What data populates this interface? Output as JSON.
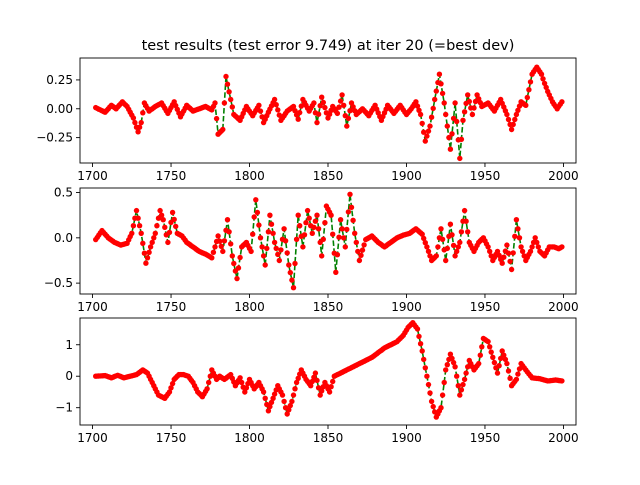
{
  "title": "test results (test error 9.749) at iter 20 (=best dev)",
  "colors": {
    "fit_line": "#008000",
    "points": "#ff0000",
    "axes": "#000000",
    "background": "#ffffff"
  },
  "chart_data": [
    {
      "type": "scatter",
      "title": "test results (test error 9.749) at iter 20 (=best dev)",
      "xlim": [
        1692,
        2008
      ],
      "ylim": [
        -0.47,
        0.44
      ],
      "xticks": [
        1700,
        1750,
        1800,
        1850,
        1900,
        1950,
        2000
      ],
      "yticks": [
        -0.25,
        0.0,
        0.25
      ],
      "yticklabels": [
        "−0.25",
        "0.00",
        "0.25"
      ],
      "x_step": 1,
      "x_start": 1702,
      "ctrl_x": [
        1702,
        1708,
        1712,
        1715,
        1719,
        1722,
        1726,
        1729,
        1731,
        1733,
        1736,
        1740,
        1744,
        1748,
        1752,
        1756,
        1760,
        1764,
        1768,
        1772,
        1776,
        1778,
        1780,
        1783,
        1785,
        1788,
        1790,
        1794,
        1798,
        1802,
        1806,
        1809,
        1812,
        1816,
        1820,
        1824,
        1828,
        1831,
        1834,
        1838,
        1841,
        1843,
        1846,
        1850,
        1853,
        1856,
        1859,
        1862,
        1865,
        1868,
        1872,
        1876,
        1880,
        1884,
        1888,
        1892,
        1896,
        1900,
        1903,
        1906,
        1909,
        1912,
        1915,
        1918,
        1921,
        1924,
        1928,
        1931,
        1934,
        1936,
        1939,
        1942,
        1945,
        1948,
        1952,
        1956,
        1960,
        1964,
        1967,
        1970,
        1973,
        1976,
        1980,
        1983,
        1986,
        1988,
        1990,
        1993,
        1996,
        1999
      ],
      "ctrl_y": [
        0.01,
        -0.03,
        0.03,
        0.0,
        0.06,
        0.02,
        -0.08,
        -0.2,
        -0.12,
        0.05,
        -0.02,
        0.02,
        0.05,
        -0.04,
        0.06,
        -0.07,
        0.03,
        -0.02,
        0.0,
        0.02,
        -0.01,
        0.05,
        -0.22,
        -0.18,
        0.28,
        0.08,
        -0.05,
        -0.1,
        0.02,
        -0.06,
        0.03,
        -0.12,
        -0.03,
        0.08,
        -0.1,
        -0.02,
        0.02,
        -0.09,
        0.08,
        -0.02,
        0.05,
        -0.12,
        0.1,
        -0.08,
        0.02,
        -0.04,
        0.12,
        -0.15,
        0.05,
        -0.05,
        0.0,
        -0.06,
        0.03,
        -0.1,
        0.03,
        -0.04,
        0.03,
        -0.05,
        0.0,
        0.06,
        -0.05,
        -0.28,
        -0.15,
        0.08,
        0.3,
        0.05,
        -0.35,
        0.05,
        -0.43,
        -0.1,
        0.12,
        -0.05,
        0.12,
        0.02,
        0.05,
        -0.02,
        0.08,
        -0.05,
        -0.18,
        -0.05,
        0.06,
        0.03,
        0.3,
        0.36,
        0.3,
        0.22,
        0.15,
        0.06,
        0.0,
        0.06
      ]
    },
    {
      "type": "scatter",
      "xlim": [
        1692,
        2008
      ],
      "ylim": [
        -0.62,
        0.55
      ],
      "xticks": [
        1700,
        1750,
        1800,
        1850,
        1900,
        1950,
        2000
      ],
      "yticks": [
        -0.5,
        0.0,
        0.5
      ],
      "yticklabels": [
        "−0.5",
        "0.0",
        "0.5"
      ],
      "x_step": 1,
      "x_start": 1702,
      "ctrl_x": [
        1702,
        1706,
        1710,
        1714,
        1718,
        1722,
        1725,
        1728,
        1731,
        1734,
        1737,
        1740,
        1743,
        1745,
        1748,
        1751,
        1754,
        1757,
        1760,
        1764,
        1768,
        1772,
        1776,
        1780,
        1783,
        1786,
        1789,
        1792,
        1795,
        1798,
        1801,
        1804,
        1807,
        1810,
        1813,
        1816,
        1819,
        1822,
        1825,
        1828,
        1831,
        1834,
        1837,
        1840,
        1843,
        1846,
        1849,
        1852,
        1855,
        1858,
        1861,
        1864,
        1867,
        1870,
        1874,
        1878,
        1882,
        1886,
        1890,
        1894,
        1898,
        1902,
        1906,
        1910,
        1913,
        1916,
        1919,
        1922,
        1925,
        1928,
        1931,
        1934,
        1937,
        1940,
        1943,
        1946,
        1949,
        1952,
        1955,
        1958,
        1961,
        1964,
        1967,
        1970,
        1973,
        1976,
        1979,
        1982,
        1985,
        1988,
        1991,
        1994,
        1997,
        1999
      ],
      "ctrl_y": [
        -0.02,
        0.08,
        0.0,
        -0.05,
        -0.08,
        -0.06,
        0.05,
        0.3,
        0.05,
        -0.28,
        -0.1,
        0.05,
        0.3,
        0.2,
        -0.05,
        0.28,
        0.05,
        0.02,
        -0.05,
        -0.1,
        -0.15,
        -0.18,
        -0.22,
        0.02,
        -0.15,
        0.2,
        -0.2,
        -0.45,
        -0.1,
        -0.05,
        -0.15,
        0.42,
        0.0,
        -0.3,
        0.25,
        -0.05,
        -0.25,
        0.1,
        -0.3,
        -0.55,
        0.25,
        -0.1,
        0.3,
        0.05,
        0.25,
        -0.2,
        0.35,
        0.25,
        -0.38,
        0.2,
        -0.1,
        0.48,
        0.05,
        -0.25,
        -0.02,
        0.02,
        -0.05,
        -0.1,
        -0.05,
        0.0,
        0.03,
        0.05,
        0.1,
        0.04,
        -0.1,
        -0.25,
        -0.2,
        0.1,
        -0.25,
        0.15,
        -0.2,
        -0.05,
        0.3,
        -0.05,
        -0.15,
        -0.05,
        0.0,
        -0.1,
        -0.25,
        -0.15,
        -0.28,
        -0.08,
        -0.35,
        0.2,
        -0.1,
        -0.25,
        -0.15,
        0.0,
        -0.15,
        -0.2,
        -0.1,
        -0.1,
        -0.12,
        -0.1
      ]
    },
    {
      "type": "scatter",
      "xlim": [
        1692,
        2008
      ],
      "ylim": [
        -1.55,
        1.85
      ],
      "xticks": [
        1700,
        1750,
        1800,
        1850,
        1900,
        1950,
        2000
      ],
      "yticks": [
        -1,
        0,
        1
      ],
      "yticklabels": [
        "−1",
        "0",
        "1"
      ],
      "x_step": 1,
      "x_start": 1702,
      "ctrl_x": [
        1702,
        1708,
        1712,
        1716,
        1720,
        1724,
        1728,
        1732,
        1735,
        1738,
        1742,
        1746,
        1749,
        1752,
        1755,
        1758,
        1761,
        1764,
        1767,
        1770,
        1773,
        1776,
        1779,
        1781,
        1784,
        1788,
        1791,
        1794,
        1797,
        1800,
        1803,
        1806,
        1809,
        1812,
        1815,
        1818,
        1821,
        1824,
        1827,
        1830,
        1833,
        1836,
        1839,
        1842,
        1845,
        1848,
        1851,
        1854,
        1858,
        1862,
        1866,
        1870,
        1874,
        1878,
        1882,
        1886,
        1890,
        1894,
        1898,
        1901,
        1904,
        1907,
        1910,
        1913,
        1916,
        1919,
        1922,
        1925,
        1928,
        1931,
        1934,
        1937,
        1940,
        1943,
        1946,
        1949,
        1952,
        1955,
        1958,
        1961,
        1964,
        1967,
        1970,
        1973,
        1976,
        1980,
        1985,
        1990,
        1995,
        1999
      ],
      "ctrl_y": [
        0.0,
        0.02,
        -0.05,
        0.03,
        -0.05,
        0.0,
        0.05,
        0.2,
        0.1,
        -0.2,
        -0.6,
        -0.7,
        -0.5,
        -0.1,
        0.05,
        0.05,
        0.0,
        -0.2,
        -0.5,
        -0.65,
        -0.4,
        0.2,
        -0.1,
        0.0,
        -0.1,
        0.05,
        -0.3,
        -0.05,
        -0.5,
        -0.1,
        -0.4,
        -0.2,
        -0.5,
        -1.1,
        -0.7,
        -0.3,
        -0.6,
        -1.2,
        -0.8,
        -0.2,
        0.2,
        -0.1,
        -0.3,
        0.1,
        -0.6,
        -0.2,
        -0.5,
        0.0,
        0.1,
        0.2,
        0.3,
        0.4,
        0.5,
        0.6,
        0.75,
        0.9,
        1.0,
        1.1,
        1.3,
        1.55,
        1.7,
        1.5,
        0.8,
        0.0,
        -0.8,
        -1.3,
        -1.0,
        0.2,
        0.7,
        0.3,
        -0.6,
        -0.1,
        0.5,
        0.2,
        0.4,
        1.2,
        1.1,
        0.6,
        0.1,
        0.8,
        0.4,
        -0.3,
        -0.1,
        0.4,
        0.2,
        -0.05,
        -0.08,
        -0.15,
        -0.12,
        -0.15
      ]
    }
  ]
}
